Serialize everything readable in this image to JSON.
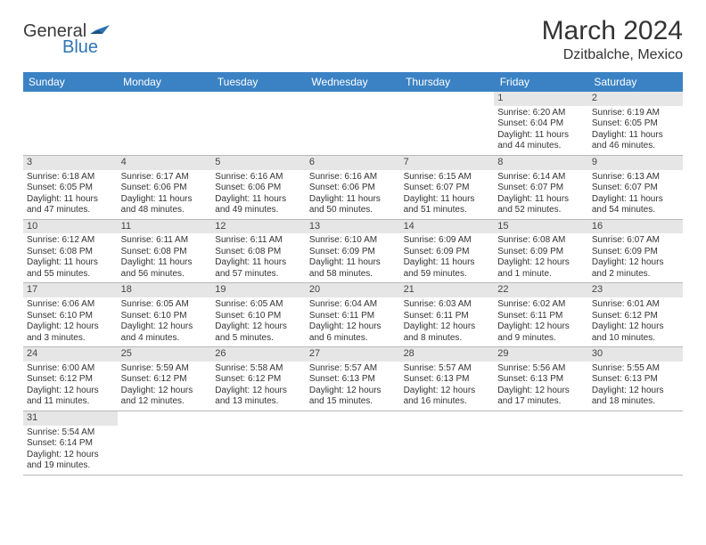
{
  "logo": {
    "part1": "General",
    "part2": "Blue"
  },
  "title": "March 2024",
  "subtitle": "Dzitbalche, Mexico",
  "colors": {
    "header_bg": "#3b82c4",
    "header_text": "#ffffff",
    "daynum_bg": "#e6e6e6",
    "border": "#b8b8b8",
    "logo_blue": "#2e74b5",
    "text": "#333333"
  },
  "weekdays": [
    "Sunday",
    "Monday",
    "Tuesday",
    "Wednesday",
    "Thursday",
    "Friday",
    "Saturday"
  ],
  "grid": [
    [
      null,
      null,
      null,
      null,
      null,
      {
        "d": "1",
        "sr": "Sunrise: 6:20 AM",
        "ss": "Sunset: 6:04 PM",
        "dl1": "Daylight: 11 hours",
        "dl2": "and 44 minutes."
      },
      {
        "d": "2",
        "sr": "Sunrise: 6:19 AM",
        "ss": "Sunset: 6:05 PM",
        "dl1": "Daylight: 11 hours",
        "dl2": "and 46 minutes."
      }
    ],
    [
      {
        "d": "3",
        "sr": "Sunrise: 6:18 AM",
        "ss": "Sunset: 6:05 PM",
        "dl1": "Daylight: 11 hours",
        "dl2": "and 47 minutes."
      },
      {
        "d": "4",
        "sr": "Sunrise: 6:17 AM",
        "ss": "Sunset: 6:06 PM",
        "dl1": "Daylight: 11 hours",
        "dl2": "and 48 minutes."
      },
      {
        "d": "5",
        "sr": "Sunrise: 6:16 AM",
        "ss": "Sunset: 6:06 PM",
        "dl1": "Daylight: 11 hours",
        "dl2": "and 49 minutes."
      },
      {
        "d": "6",
        "sr": "Sunrise: 6:16 AM",
        "ss": "Sunset: 6:06 PM",
        "dl1": "Daylight: 11 hours",
        "dl2": "and 50 minutes."
      },
      {
        "d": "7",
        "sr": "Sunrise: 6:15 AM",
        "ss": "Sunset: 6:07 PM",
        "dl1": "Daylight: 11 hours",
        "dl2": "and 51 minutes."
      },
      {
        "d": "8",
        "sr": "Sunrise: 6:14 AM",
        "ss": "Sunset: 6:07 PM",
        "dl1": "Daylight: 11 hours",
        "dl2": "and 52 minutes."
      },
      {
        "d": "9",
        "sr": "Sunrise: 6:13 AM",
        "ss": "Sunset: 6:07 PM",
        "dl1": "Daylight: 11 hours",
        "dl2": "and 54 minutes."
      }
    ],
    [
      {
        "d": "10",
        "sr": "Sunrise: 6:12 AM",
        "ss": "Sunset: 6:08 PM",
        "dl1": "Daylight: 11 hours",
        "dl2": "and 55 minutes."
      },
      {
        "d": "11",
        "sr": "Sunrise: 6:11 AM",
        "ss": "Sunset: 6:08 PM",
        "dl1": "Daylight: 11 hours",
        "dl2": "and 56 minutes."
      },
      {
        "d": "12",
        "sr": "Sunrise: 6:11 AM",
        "ss": "Sunset: 6:08 PM",
        "dl1": "Daylight: 11 hours",
        "dl2": "and 57 minutes."
      },
      {
        "d": "13",
        "sr": "Sunrise: 6:10 AM",
        "ss": "Sunset: 6:09 PM",
        "dl1": "Daylight: 11 hours",
        "dl2": "and 58 minutes."
      },
      {
        "d": "14",
        "sr": "Sunrise: 6:09 AM",
        "ss": "Sunset: 6:09 PM",
        "dl1": "Daylight: 11 hours",
        "dl2": "and 59 minutes."
      },
      {
        "d": "15",
        "sr": "Sunrise: 6:08 AM",
        "ss": "Sunset: 6:09 PM",
        "dl1": "Daylight: 12 hours",
        "dl2": "and 1 minute."
      },
      {
        "d": "16",
        "sr": "Sunrise: 6:07 AM",
        "ss": "Sunset: 6:09 PM",
        "dl1": "Daylight: 12 hours",
        "dl2": "and 2 minutes."
      }
    ],
    [
      {
        "d": "17",
        "sr": "Sunrise: 6:06 AM",
        "ss": "Sunset: 6:10 PM",
        "dl1": "Daylight: 12 hours",
        "dl2": "and 3 minutes."
      },
      {
        "d": "18",
        "sr": "Sunrise: 6:05 AM",
        "ss": "Sunset: 6:10 PM",
        "dl1": "Daylight: 12 hours",
        "dl2": "and 4 minutes."
      },
      {
        "d": "19",
        "sr": "Sunrise: 6:05 AM",
        "ss": "Sunset: 6:10 PM",
        "dl1": "Daylight: 12 hours",
        "dl2": "and 5 minutes."
      },
      {
        "d": "20",
        "sr": "Sunrise: 6:04 AM",
        "ss": "Sunset: 6:11 PM",
        "dl1": "Daylight: 12 hours",
        "dl2": "and 6 minutes."
      },
      {
        "d": "21",
        "sr": "Sunrise: 6:03 AM",
        "ss": "Sunset: 6:11 PM",
        "dl1": "Daylight: 12 hours",
        "dl2": "and 8 minutes."
      },
      {
        "d": "22",
        "sr": "Sunrise: 6:02 AM",
        "ss": "Sunset: 6:11 PM",
        "dl1": "Daylight: 12 hours",
        "dl2": "and 9 minutes."
      },
      {
        "d": "23",
        "sr": "Sunrise: 6:01 AM",
        "ss": "Sunset: 6:12 PM",
        "dl1": "Daylight: 12 hours",
        "dl2": "and 10 minutes."
      }
    ],
    [
      {
        "d": "24",
        "sr": "Sunrise: 6:00 AM",
        "ss": "Sunset: 6:12 PM",
        "dl1": "Daylight: 12 hours",
        "dl2": "and 11 minutes."
      },
      {
        "d": "25",
        "sr": "Sunrise: 5:59 AM",
        "ss": "Sunset: 6:12 PM",
        "dl1": "Daylight: 12 hours",
        "dl2": "and 12 minutes."
      },
      {
        "d": "26",
        "sr": "Sunrise: 5:58 AM",
        "ss": "Sunset: 6:12 PM",
        "dl1": "Daylight: 12 hours",
        "dl2": "and 13 minutes."
      },
      {
        "d": "27",
        "sr": "Sunrise: 5:57 AM",
        "ss": "Sunset: 6:13 PM",
        "dl1": "Daylight: 12 hours",
        "dl2": "and 15 minutes."
      },
      {
        "d": "28",
        "sr": "Sunrise: 5:57 AM",
        "ss": "Sunset: 6:13 PM",
        "dl1": "Daylight: 12 hours",
        "dl2": "and 16 minutes."
      },
      {
        "d": "29",
        "sr": "Sunrise: 5:56 AM",
        "ss": "Sunset: 6:13 PM",
        "dl1": "Daylight: 12 hours",
        "dl2": "and 17 minutes."
      },
      {
        "d": "30",
        "sr": "Sunrise: 5:55 AM",
        "ss": "Sunset: 6:13 PM",
        "dl1": "Daylight: 12 hours",
        "dl2": "and 18 minutes."
      }
    ],
    [
      {
        "d": "31",
        "sr": "Sunrise: 5:54 AM",
        "ss": "Sunset: 6:14 PM",
        "dl1": "Daylight: 12 hours",
        "dl2": "and 19 minutes."
      },
      null,
      null,
      null,
      null,
      null,
      null
    ]
  ]
}
